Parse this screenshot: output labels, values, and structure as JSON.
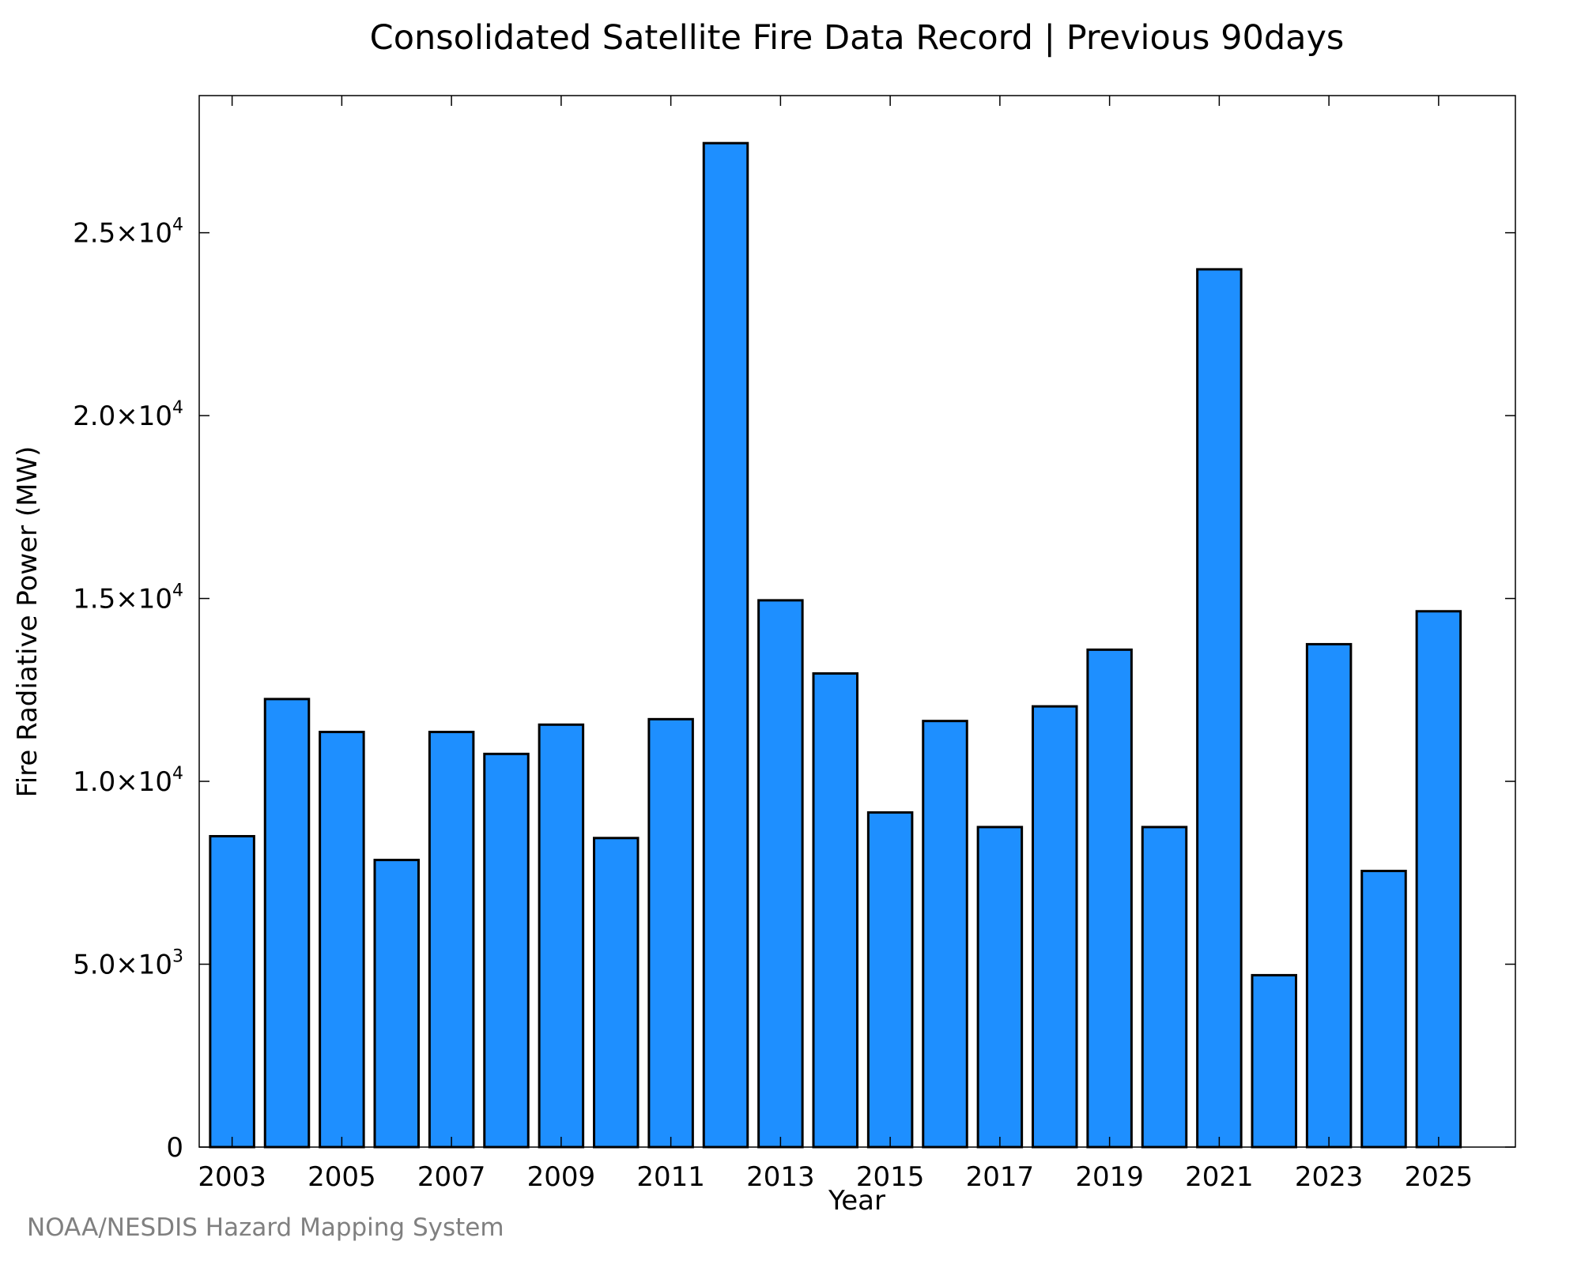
{
  "chart_data": {
    "type": "bar",
    "title": "Consolidated Satellite Fire Data Record | Previous 90days",
    "xlabel": "Year",
    "ylabel": "Fire Radiative Power (MW)",
    "categories": [
      "2003",
      "2004",
      "2005",
      "2006",
      "2007",
      "2008",
      "2009",
      "2010",
      "2011",
      "2012",
      "2013",
      "2014",
      "2015",
      "2016",
      "2017",
      "2018",
      "2019",
      "2020",
      "2021",
      "2022",
      "2023",
      "2024",
      "2025"
    ],
    "values": [
      8500,
      12250,
      11350,
      7850,
      11350,
      10750,
      11550,
      8450,
      11700,
      27450,
      14950,
      12950,
      9150,
      11650,
      8750,
      12050,
      13600,
      8750,
      24000,
      4700,
      13750,
      7550,
      14650
    ],
    "x_tick_labels": [
      "2003",
      "2005",
      "2007",
      "2009",
      "2011",
      "2013",
      "2015",
      "2017",
      "2019",
      "2021",
      "2023",
      "2025"
    ],
    "y_ticks": [
      {
        "value": 0,
        "mantissa": "0",
        "exponent": ""
      },
      {
        "value": 5000,
        "mantissa": "5.0×10",
        "exponent": "3"
      },
      {
        "value": 10000,
        "mantissa": "1.0×10",
        "exponent": "4"
      },
      {
        "value": 15000,
        "mantissa": "1.5×10",
        "exponent": "4"
      },
      {
        "value": 20000,
        "mantissa": "2.0×10",
        "exponent": "4"
      },
      {
        "value": 25000,
        "mantissa": "2.5×10",
        "exponent": "4"
      }
    ],
    "ylim": [
      0,
      28750
    ],
    "xlim": [
      2002.4,
      2026.4
    ],
    "grid": false,
    "legend": "none",
    "colors": {
      "bar_fill": "#1E8FFF",
      "bar_stroke": "#000000"
    }
  },
  "footer": {
    "credit": "NOAA/NESDIS Hazard Mapping System"
  }
}
